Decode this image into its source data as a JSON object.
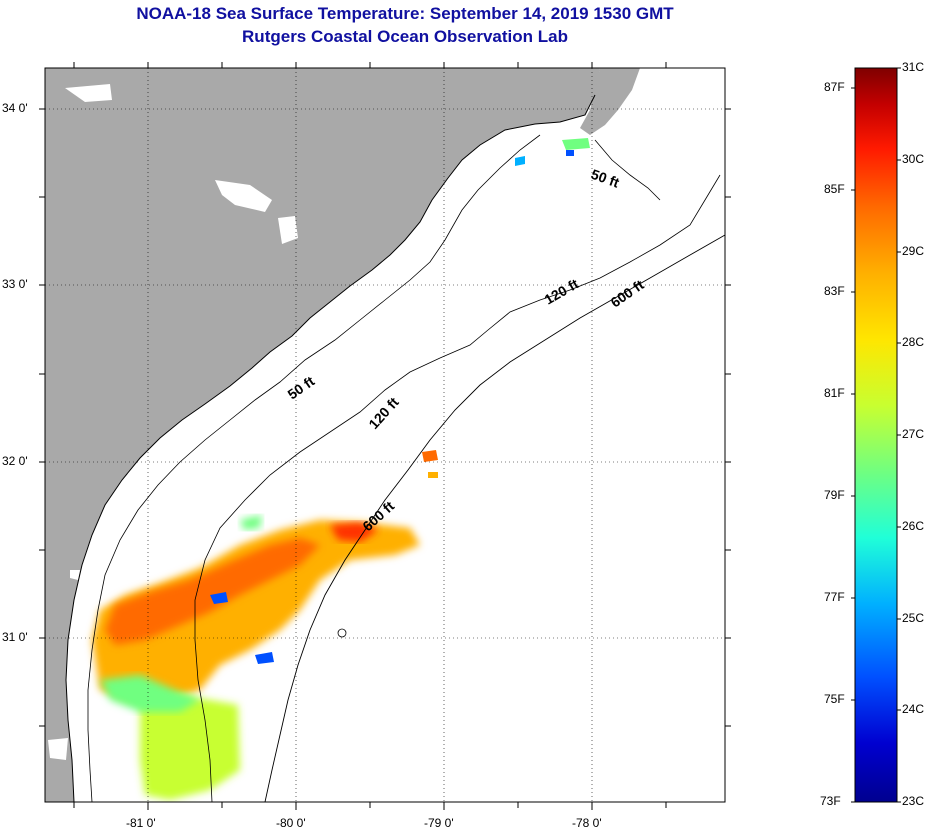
{
  "title_line1": "NOAA-18 Sea Surface Temperature:  September 14, 2019 1530 GMT",
  "title_line2": "Rutgers Coastal Ocean Observation Lab",
  "axes": {
    "lon_labels": [
      "-81 0'",
      "-80 0'",
      "-79 0'",
      "-78 0'"
    ],
    "lat_labels": [
      "34 0'",
      "33 0'",
      "32 0'",
      "31 0'"
    ]
  },
  "contours": [
    "50 ft",
    "50 ft",
    "120 ft",
    "120 ft",
    "600 ft",
    "600 ft"
  ],
  "colorbar": {
    "fahrenheit": [
      "87F",
      "85F",
      "83F",
      "81F",
      "79F",
      "77F",
      "75F",
      "73F"
    ],
    "celsius": [
      "31C",
      "30C",
      "29C",
      "28C",
      "27C",
      "26C",
      "25C",
      "24C",
      "23C"
    ],
    "colors": [
      "#7f0000",
      "#c40000",
      "#ff1a00",
      "#ff6a00",
      "#ffb000",
      "#ffe600",
      "#c8ff30",
      "#70ff80",
      "#20ffd8",
      "#00b0ff",
      "#0050ff",
      "#0000d0",
      "#00008f"
    ]
  },
  "colors": {
    "land": "#a9a9a9",
    "ocean": "#ffffff",
    "title": "#1010a0"
  }
}
